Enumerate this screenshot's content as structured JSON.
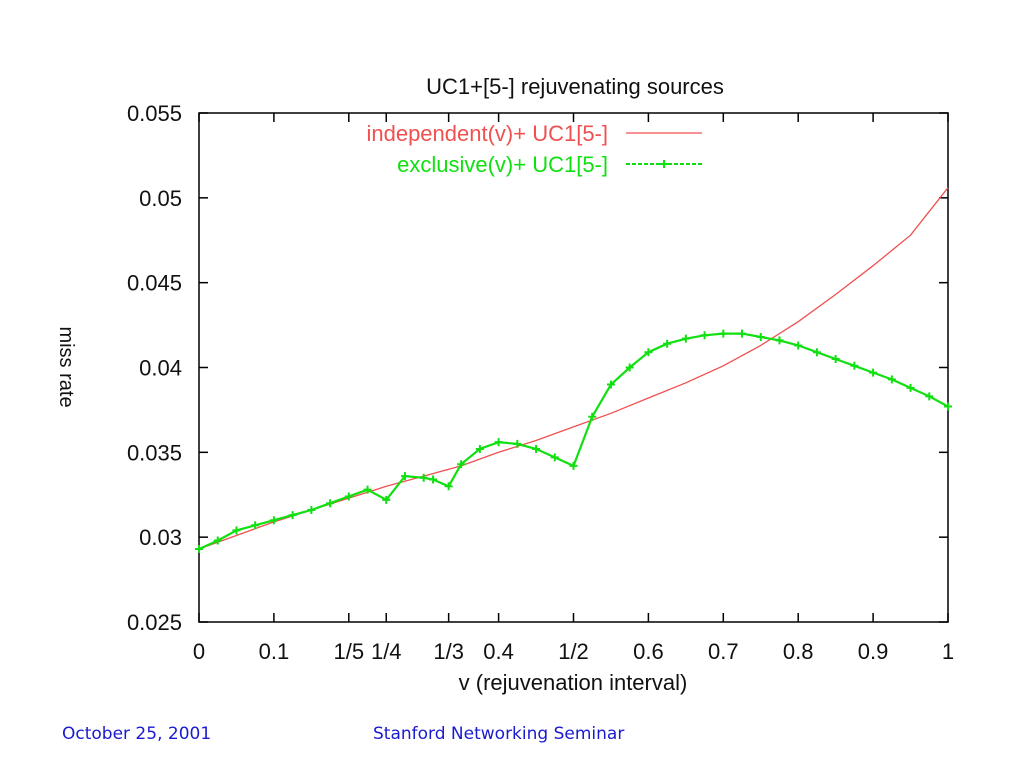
{
  "chart_data": {
    "type": "line",
    "title": "UC1+[5-] rejuvenating sources",
    "xlabel": "v (rejuvenation interval)",
    "ylabel": "miss rate",
    "xlim": [
      0,
      1
    ],
    "ylim": [
      0.025,
      0.055
    ],
    "x_ticks": [
      {
        "value": 0,
        "label": "0"
      },
      {
        "value": 0.1,
        "label": "0.1"
      },
      {
        "value": 0.2,
        "label": "1/5"
      },
      {
        "value": 0.25,
        "label": "1/4"
      },
      {
        "value": 0.3333,
        "label": "1/3"
      },
      {
        "value": 0.4,
        "label": "0.4"
      },
      {
        "value": 0.5,
        "label": "1/2"
      },
      {
        "value": 0.6,
        "label": "0.6"
      },
      {
        "value": 0.7,
        "label": "0.7"
      },
      {
        "value": 0.8,
        "label": "0.8"
      },
      {
        "value": 0.9,
        "label": "0.9"
      },
      {
        "value": 1,
        "label": "1"
      }
    ],
    "y_ticks": [
      {
        "value": 0.025,
        "label": "0.025"
      },
      {
        "value": 0.03,
        "label": "0.03"
      },
      {
        "value": 0.035,
        "label": "0.035"
      },
      {
        "value": 0.04,
        "label": "0.04"
      },
      {
        "value": 0.045,
        "label": "0.045"
      },
      {
        "value": 0.05,
        "label": "0.05"
      },
      {
        "value": 0.055,
        "label": "0.055"
      }
    ],
    "legend_position": "top-right",
    "grid": false,
    "series": [
      {
        "name": "independent(v)+ UC1[5-]",
        "color": "#f05050",
        "marker": false,
        "x": [
          0,
          0.05,
          0.1,
          0.15,
          0.2,
          0.25,
          0.3,
          0.35,
          0.4,
          0.45,
          0.5,
          0.55,
          0.6,
          0.65,
          0.7,
          0.75,
          0.8,
          0.85,
          0.9,
          0.95,
          1.0
        ],
        "y": [
          0.0293,
          0.0301,
          0.0309,
          0.0316,
          0.0323,
          0.033,
          0.0336,
          0.0342,
          0.035,
          0.0357,
          0.0365,
          0.0373,
          0.0382,
          0.0391,
          0.0401,
          0.0413,
          0.0427,
          0.0443,
          0.046,
          0.0478,
          0.0506
        ]
      },
      {
        "name": "exclusive(v)+ UC1[5-]",
        "color": "#10e010",
        "marker": true,
        "x": [
          0,
          0.025,
          0.05,
          0.075,
          0.1,
          0.125,
          0.15,
          0.175,
          0.2,
          0.225,
          0.25,
          0.275,
          0.3,
          0.3125,
          0.3333,
          0.35,
          0.375,
          0.4,
          0.425,
          0.45,
          0.475,
          0.5,
          0.525,
          0.55,
          0.575,
          0.6,
          0.625,
          0.65,
          0.675,
          0.7,
          0.725,
          0.75,
          0.775,
          0.8,
          0.825,
          0.85,
          0.875,
          0.9,
          0.925,
          0.95,
          0.975,
          1.0
        ],
        "y": [
          0.0293,
          0.0298,
          0.0304,
          0.0307,
          0.031,
          0.0313,
          0.0316,
          0.032,
          0.0324,
          0.0328,
          0.0322,
          0.0336,
          0.0335,
          0.0334,
          0.033,
          0.0343,
          0.0352,
          0.0356,
          0.0355,
          0.0352,
          0.0347,
          0.0342,
          0.0371,
          0.039,
          0.04,
          0.0409,
          0.0414,
          0.0417,
          0.0419,
          0.042,
          0.042,
          0.0418,
          0.0416,
          0.0413,
          0.0409,
          0.0405,
          0.0401,
          0.0397,
          0.0393,
          0.0388,
          0.0383,
          0.0377
        ]
      }
    ]
  },
  "footer": {
    "date": "October 25, 2001",
    "event": "Stanford Networking Seminar"
  }
}
